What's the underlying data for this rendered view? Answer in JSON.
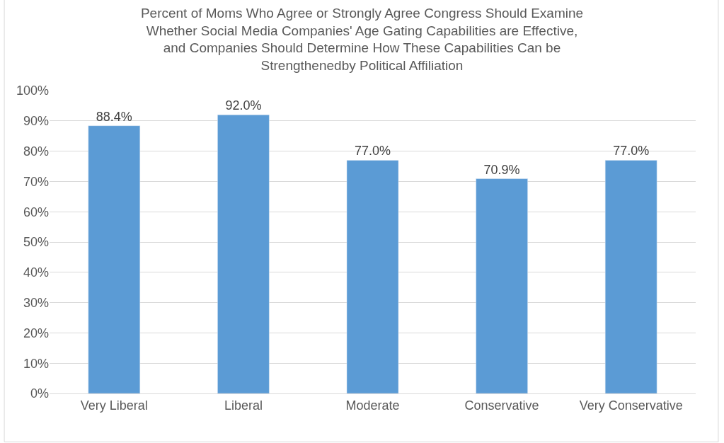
{
  "chart_data": {
    "type": "bar",
    "title": "Percent of Moms Who Agree or Strongly Agree Congress Should Examine Whether Social Media Companies' Age Gating Capabilities are Effective, and Companies Should Determine How These Capabilities Can be Strengthenedby Political Affiliation",
    "categories": [
      "Very Liberal",
      "Liberal",
      "Moderate",
      "Conservative",
      "Very Conservative"
    ],
    "values": [
      88.4,
      92.0,
      77.0,
      70.9,
      77.0
    ],
    "value_labels": [
      "88.4%",
      "92.0%",
      "77.0%",
      "70.9%",
      "77.0%"
    ],
    "color": "#5b9bd5",
    "ylim": [
      0,
      100
    ],
    "yticks": [
      {
        "value": 0,
        "label": "0%"
      },
      {
        "value": 10,
        "label": "10%"
      },
      {
        "value": 20,
        "label": "20%"
      },
      {
        "value": 30,
        "label": "30%"
      },
      {
        "value": 40,
        "label": "40%"
      },
      {
        "value": 50,
        "label": "50%"
      },
      {
        "value": 60,
        "label": "60%"
      },
      {
        "value": 70,
        "label": "70%"
      },
      {
        "value": 80,
        "label": "80%"
      },
      {
        "value": 90,
        "label": "90%"
      },
      {
        "value": 100,
        "label": "100%"
      }
    ],
    "grid": "y"
  }
}
